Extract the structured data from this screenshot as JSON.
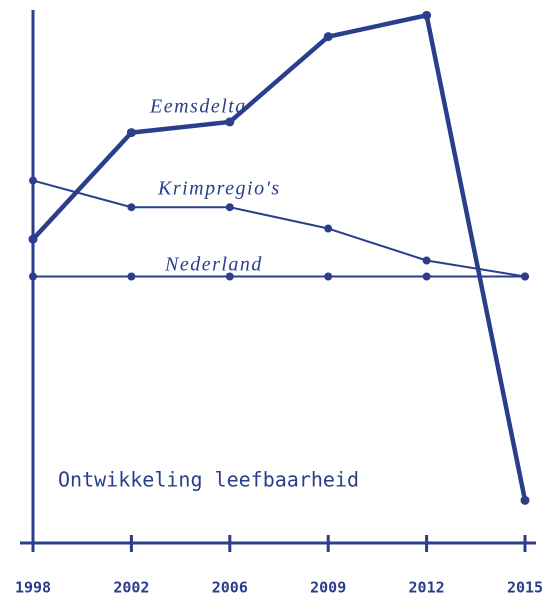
{
  "chart_data": {
    "type": "line",
    "title": "Ontwikkeling leefbaarheid",
    "categories": [
      "1998",
      "2002",
      "2006",
      "2009",
      "2012",
      "2015"
    ],
    "ylim": [
      0,
      100
    ],
    "series": [
      {
        "name": "Eemsdelta",
        "color": "#2b3e8c",
        "values": [
          57,
          77,
          79,
          95,
          99,
          8
        ]
      },
      {
        "name": "Krimpregio's",
        "color": "#2b3e8c",
        "values": [
          68,
          63,
          63,
          59,
          53,
          50
        ]
      },
      {
        "name": "Nederland",
        "color": "#2b3e8c",
        "values": [
          50,
          50,
          50,
          50,
          50,
          50
        ]
      }
    ]
  }
}
